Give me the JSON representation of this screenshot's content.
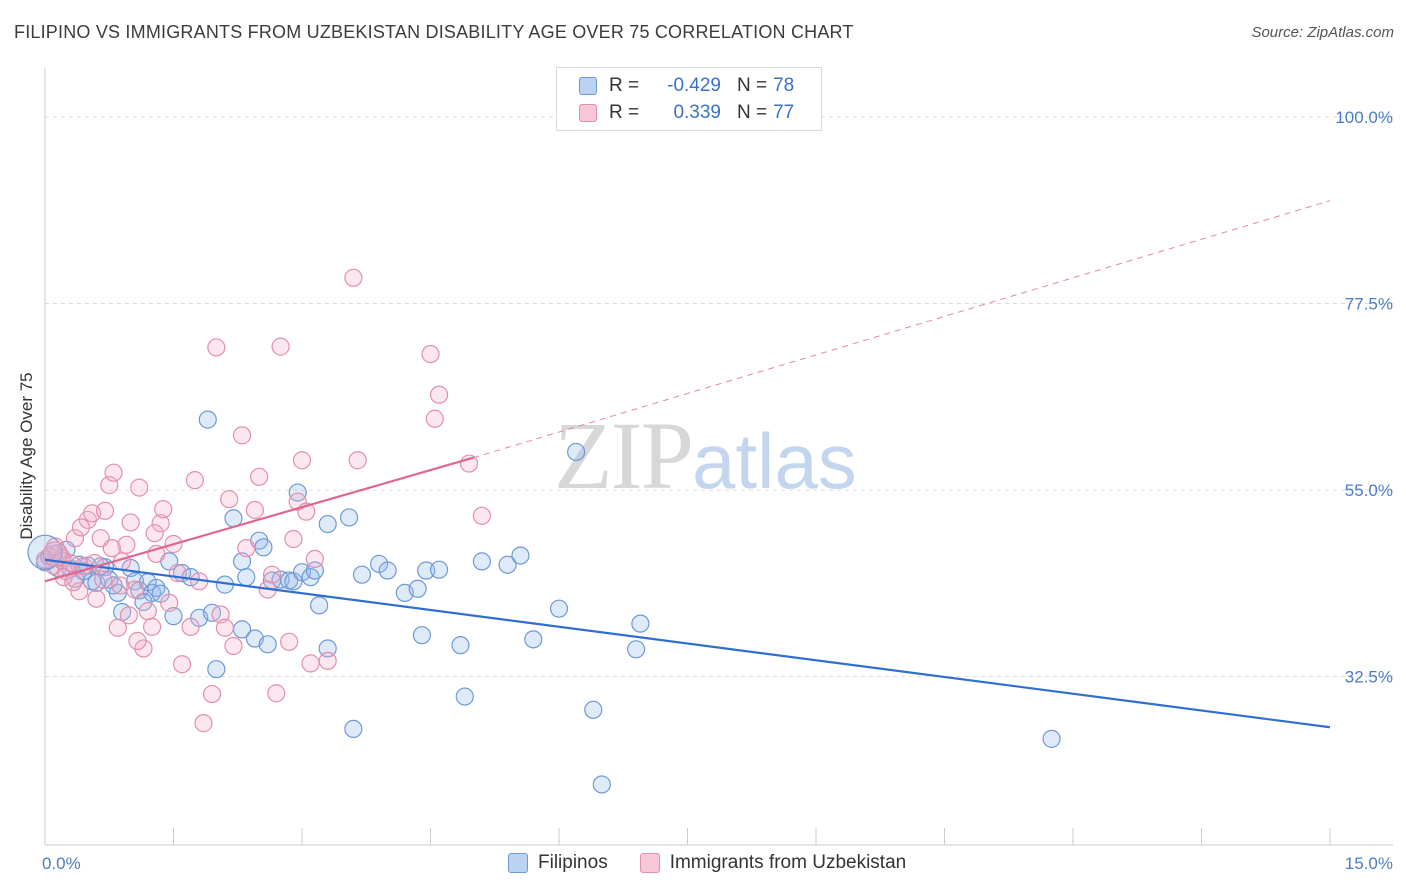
{
  "header": {
    "title": "FILIPINO VS IMMIGRANTS FROM UZBEKISTAN DISABILITY AGE OVER 75 CORRELATION CHART",
    "source": "Source: ZipAtlas.com"
  },
  "watermark": {
    "zip": "ZIP",
    "atlas": "atlas"
  },
  "legend": {
    "rows": [
      {
        "r_label": "R =",
        "r_value": "-0.429",
        "n_label": "N =",
        "n_value": "78",
        "color": "#4a7cc9"
      },
      {
        "r_label": "R =",
        "r_value": "0.339",
        "n_label": "N =",
        "n_value": "77",
        "color": "#e07098"
      }
    ]
  },
  "bottom_legend": {
    "items": [
      {
        "label": "Filipinos",
        "color": "#4a7cc9"
      },
      {
        "label": "Immigrants from Uzbekistan",
        "color": "#e07098"
      }
    ]
  },
  "chart_data": {
    "type": "scatter",
    "title": "FILIPINO VS IMMIGRANTS FROM UZBEKISTAN DISABILITY AGE OVER 75 CORRELATION CHART",
    "xlabel": "",
    "ylabel": "Disability Age Over 75",
    "xlim": [
      0,
      15
    ],
    "ylim": [
      12.2,
      105.9
    ],
    "x_tick_labels": [
      "0.0%",
      "15.0%"
    ],
    "y_ticks": [
      32.5,
      55.0,
      77.5,
      100.0
    ],
    "y_tick_labels": [
      "32.5%",
      "55.0%",
      "77.5%",
      "100.0%"
    ],
    "grid": true,
    "legend_position": "top-center",
    "series": [
      {
        "name": "Filipinos",
        "color": "#4a7cc9",
        "points": [
          [
            0.0,
            46.3
          ],
          [
            0.1,
            47.3
          ],
          [
            0.15,
            45.6
          ],
          [
            0.2,
            46.5
          ],
          [
            0.3,
            45.5
          ],
          [
            0.35,
            44.3
          ],
          [
            0.4,
            46.0
          ],
          [
            0.5,
            45.9
          ],
          [
            0.55,
            44.0
          ],
          [
            0.6,
            43.8
          ],
          [
            0.7,
            45.7
          ],
          [
            0.75,
            44.2
          ],
          [
            0.85,
            42.6
          ],
          [
            0.9,
            40.3
          ],
          [
            1.0,
            45.6
          ],
          [
            1.05,
            44.0
          ],
          [
            1.1,
            42.9
          ],
          [
            1.2,
            43.9
          ],
          [
            1.25,
            42.6
          ],
          [
            1.3,
            43.2
          ],
          [
            1.35,
            42.5
          ],
          [
            1.45,
            46.4
          ],
          [
            1.6,
            45.0
          ],
          [
            1.7,
            44.5
          ],
          [
            1.8,
            39.6
          ],
          [
            1.9,
            63.5
          ],
          [
            1.95,
            40.2
          ],
          [
            2.0,
            33.4
          ],
          [
            2.1,
            43.6
          ],
          [
            2.2,
            51.6
          ],
          [
            2.3,
            38.2
          ],
          [
            2.3,
            46.4
          ],
          [
            2.35,
            44.5
          ],
          [
            2.45,
            37.1
          ],
          [
            2.5,
            48.9
          ],
          [
            2.55,
            48.1
          ],
          [
            2.6,
            36.4
          ],
          [
            2.65,
            44.1
          ],
          [
            2.75,
            44.2
          ],
          [
            2.85,
            44.1
          ],
          [
            2.9,
            44.0
          ],
          [
            2.95,
            54.7
          ],
          [
            3.0,
            45.1
          ],
          [
            3.1,
            44.5
          ],
          [
            3.15,
            45.3
          ],
          [
            3.2,
            41.1
          ],
          [
            3.3,
            35.9
          ],
          [
            3.3,
            50.9
          ],
          [
            3.55,
            51.7
          ],
          [
            3.6,
            26.2
          ],
          [
            3.7,
            44.8
          ],
          [
            3.9,
            46.1
          ],
          [
            4.0,
            45.3
          ],
          [
            4.2,
            42.6
          ],
          [
            4.35,
            43.1
          ],
          [
            4.4,
            37.5
          ],
          [
            4.45,
            45.3
          ],
          [
            4.6,
            45.4
          ],
          [
            4.85,
            36.3
          ],
          [
            4.9,
            30.1
          ],
          [
            5.1,
            46.4
          ],
          [
            5.4,
            46.0
          ],
          [
            5.55,
            47.1
          ],
          [
            6.0,
            40.7
          ],
          [
            6.2,
            59.6
          ],
          [
            6.4,
            28.5
          ],
          [
            6.5,
            19.5
          ],
          [
            6.9,
            35.8
          ],
          [
            6.95,
            38.9
          ],
          [
            11.75,
            25.0
          ],
          [
            5.7,
            37.0
          ],
          [
            0.05,
            47.0
          ],
          [
            0.25,
            47.8
          ],
          [
            0.45,
            45.2
          ],
          [
            0.65,
            45.8
          ],
          [
            0.8,
            43.5
          ],
          [
            1.15,
            41.5
          ],
          [
            1.5,
            39.8
          ]
        ]
      },
      {
        "name": "Immigrants from Uzbekistan",
        "color": "#e07098",
        "points": [
          [
            0.0,
            46.6
          ],
          [
            0.05,
            47.0
          ],
          [
            0.1,
            45.9
          ],
          [
            0.15,
            47.4
          ],
          [
            0.2,
            46.8
          ],
          [
            0.25,
            45.2
          ],
          [
            0.3,
            46.2
          ],
          [
            0.35,
            49.2
          ],
          [
            0.4,
            42.8
          ],
          [
            0.45,
            45.8
          ],
          [
            0.5,
            51.4
          ],
          [
            0.55,
            52.2
          ],
          [
            0.6,
            41.9
          ],
          [
            0.65,
            49.2
          ],
          [
            0.7,
            52.5
          ],
          [
            0.75,
            55.6
          ],
          [
            0.8,
            57.1
          ],
          [
            0.85,
            38.4
          ],
          [
            0.9,
            46.4
          ],
          [
            0.95,
            48.4
          ],
          [
            1.0,
            51.1
          ],
          [
            1.05,
            43.0
          ],
          [
            1.1,
            55.3
          ],
          [
            1.15,
            35.9
          ],
          [
            1.2,
            40.4
          ],
          [
            1.25,
            38.5
          ],
          [
            1.3,
            47.3
          ],
          [
            1.35,
            51.0
          ],
          [
            1.45,
            41.4
          ],
          [
            1.5,
            48.5
          ],
          [
            1.55,
            45.0
          ],
          [
            1.6,
            34.0
          ],
          [
            1.7,
            38.5
          ],
          [
            1.75,
            56.2
          ],
          [
            1.8,
            44.0
          ],
          [
            1.85,
            26.9
          ],
          [
            1.95,
            30.4
          ],
          [
            2.0,
            72.2
          ],
          [
            2.05,
            40.0
          ],
          [
            2.1,
            38.4
          ],
          [
            2.15,
            53.9
          ],
          [
            2.2,
            36.2
          ],
          [
            2.3,
            61.6
          ],
          [
            2.35,
            48.0
          ],
          [
            2.45,
            52.6
          ],
          [
            2.5,
            56.6
          ],
          [
            2.6,
            43.0
          ],
          [
            2.65,
            44.8
          ],
          [
            2.7,
            30.5
          ],
          [
            2.75,
            72.3
          ],
          [
            2.85,
            36.7
          ],
          [
            2.9,
            49.1
          ],
          [
            2.95,
            53.6
          ],
          [
            3.0,
            58.6
          ],
          [
            3.05,
            52.4
          ],
          [
            3.1,
            34.1
          ],
          [
            3.15,
            46.7
          ],
          [
            3.3,
            34.4
          ],
          [
            3.6,
            80.6
          ],
          [
            3.65,
            58.6
          ],
          [
            4.5,
            71.4
          ],
          [
            4.55,
            63.6
          ],
          [
            4.6,
            66.5
          ],
          [
            4.95,
            58.2
          ],
          [
            5.1,
            51.9
          ],
          [
            0.12,
            48.2
          ],
          [
            0.22,
            44.5
          ],
          [
            0.33,
            43.9
          ],
          [
            0.42,
            50.5
          ],
          [
            0.58,
            46.2
          ],
          [
            0.68,
            44.2
          ],
          [
            0.78,
            48.0
          ],
          [
            0.88,
            43.5
          ],
          [
            0.98,
            39.9
          ],
          [
            1.08,
            36.8
          ],
          [
            1.28,
            49.8
          ],
          [
            1.38,
            52.7
          ]
        ]
      }
    ],
    "trendlines": [
      {
        "series": "Filipinos",
        "x": [
          0.0,
          15.0
        ],
        "y": [
          46.6,
          26.4
        ],
        "style": "solid"
      },
      {
        "series": "Immigrants from Uzbekistan",
        "x": [
          0.0,
          5.0
        ],
        "y": [
          44.0,
          58.9
        ],
        "style": "solid"
      },
      {
        "series": "Immigrants from Uzbekistan",
        "x": [
          5.0,
          15.0
        ],
        "y": [
          58.9,
          89.9
        ],
        "style": "dashed"
      }
    ]
  }
}
